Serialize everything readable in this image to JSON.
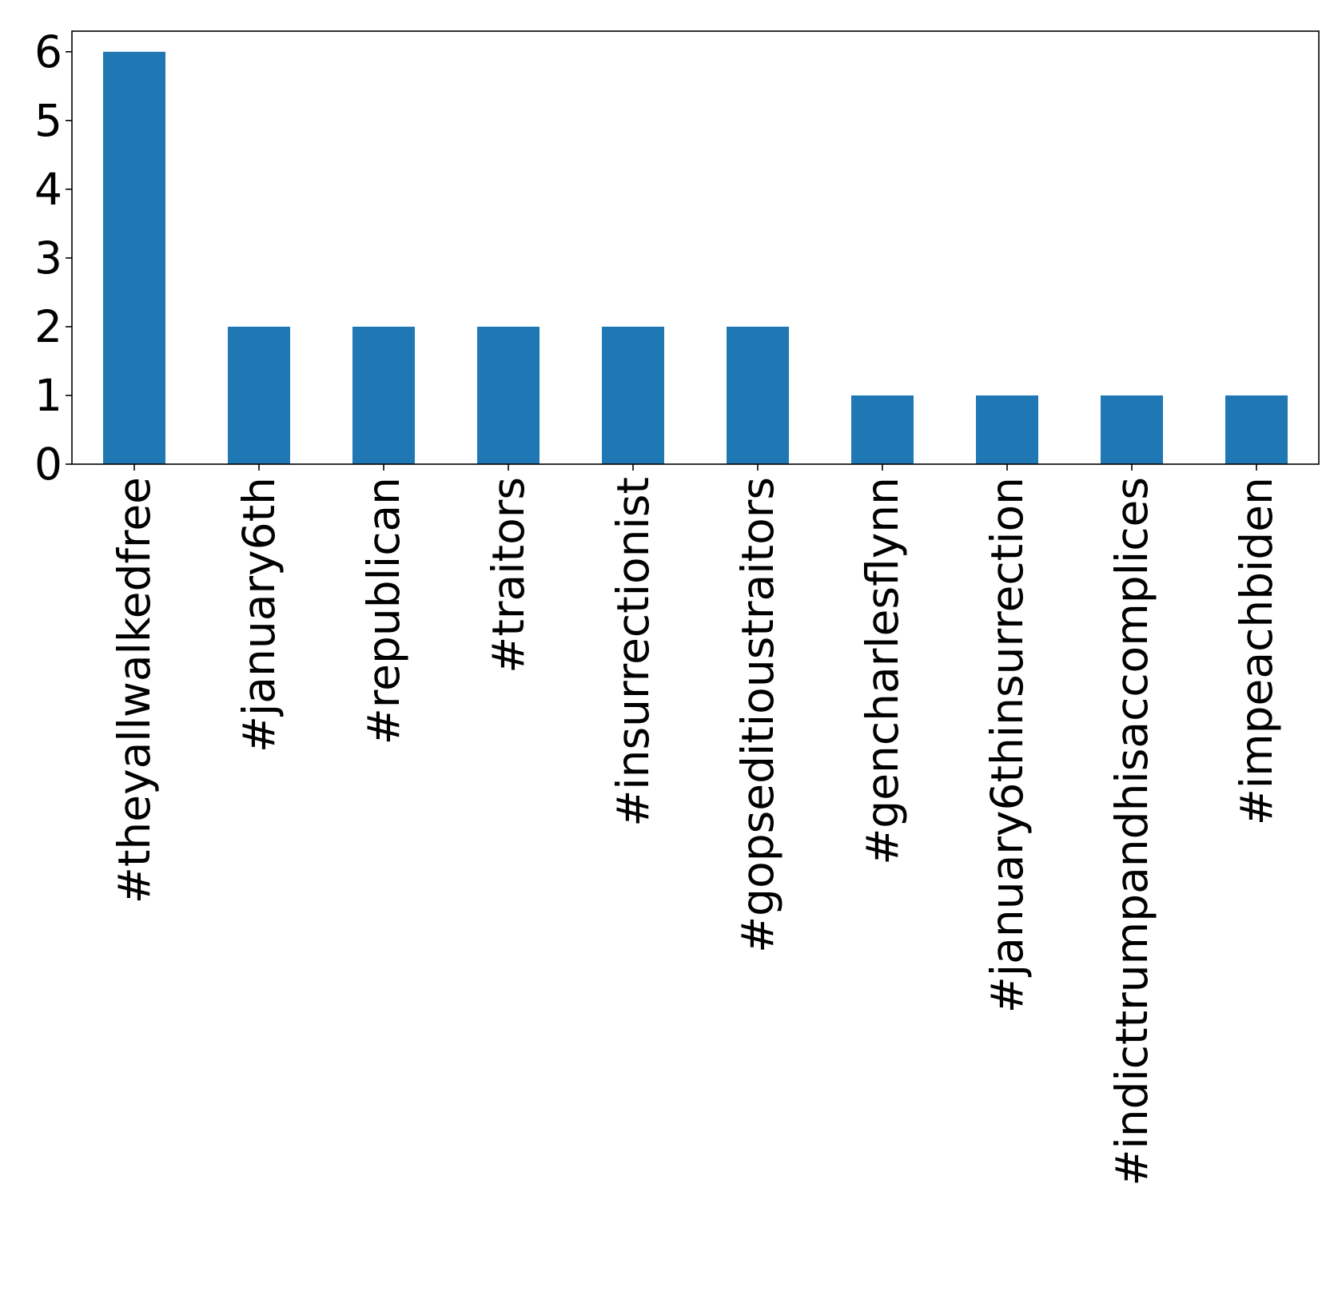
{
  "chart_data": {
    "type": "bar",
    "title": "",
    "xlabel": "",
    "ylabel": "",
    "categories": [
      "#theyallwalkedfree",
      "#january6th",
      "#republican",
      "#traitors",
      "#insurrectionist",
      "#gopseditioustraitors",
      "#gencharlesflynn",
      "#january6thinsurrection",
      "#indicttrumpandhisaccomplices",
      "#impeachbiden"
    ],
    "values": [
      6,
      2,
      2,
      2,
      2,
      2,
      1,
      1,
      1,
      1
    ],
    "ylim": [
      0,
      6.3
    ],
    "yticks": [
      0,
      1,
      2,
      3,
      4,
      5,
      6
    ],
    "grid": false,
    "legend": "none",
    "bar_color": "#1f77b4"
  }
}
